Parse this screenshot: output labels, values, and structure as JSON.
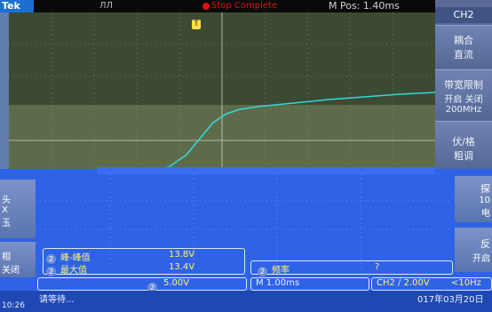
{
  "header": {
    "brand": "Tek",
    "trigger_state": "ЛЛ",
    "record_text": "Stop Complete",
    "m_pos": "M Pos: 1.40ms"
  },
  "right_menu": {
    "channel": "CH2",
    "items": [
      {
        "line1": "耦合",
        "line2": "直流"
      },
      {
        "line1": "带宽限制",
        "line2": "开启 关闭",
        "line3": "200MHz"
      },
      {
        "line1": "伏/格",
        "line2": "粗调"
      }
    ]
  },
  "trigger_marker": "T",
  "ground_marker": "2",
  "left_menu": {
    "item1": {
      "line1": "头",
      "line2": "X",
      "line3": "玉"
    },
    "item2": {
      "line1": "相",
      "line2": "关闭"
    }
  },
  "right_menu2": {
    "item1": {
      "line1": "探",
      "line2": "10",
      "line3": "电"
    },
    "item2": {
      "line1": "反",
      "line2": "开启"
    }
  },
  "measurements": [
    {
      "channel": "2",
      "label": "峰-峰值",
      "value": "13.8V"
    },
    {
      "channel": "2",
      "label": "最大值",
      "value": "13.4V"
    }
  ],
  "freq_measure": {
    "channel": "2",
    "label": "频率",
    "value": "?"
  },
  "status": {
    "ch_scale_channel": "2",
    "ch_scale": "5.00V",
    "timebase": "M 1.00ms",
    "trigger": "CH2 ∕ 2.00V",
    "freq": "<10Hz",
    "waiting": "请等待...",
    "date": "017年03月20日",
    "time": "10:26"
  },
  "colors": {
    "screen_bg": "#3c4a33",
    "trace": "#35d6d6",
    "overlay": "#2f63e6",
    "measure_text": "#ffef7a"
  }
}
